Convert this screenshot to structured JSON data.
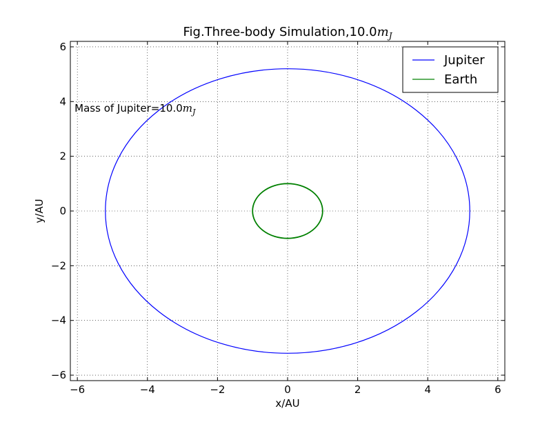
{
  "chart_data": {
    "type": "line",
    "title": "Fig.Three-body Simulation,10.0",
    "title_math": "m",
    "title_math_sub": "J",
    "xlabel": "x/AU",
    "ylabel": "y/AU",
    "xlim": [
      -6.2,
      6.2
    ],
    "ylim": [
      -6.2,
      6.2
    ],
    "xticks": [
      -6,
      -4,
      -2,
      0,
      2,
      4,
      6
    ],
    "yticks": [
      -6,
      -4,
      -2,
      0,
      2,
      4,
      6
    ],
    "xtick_labels": [
      "−6",
      "−4",
      "−2",
      "0",
      "2",
      "4",
      "6"
    ],
    "ytick_labels": [
      "−6",
      "−4",
      "−2",
      "0",
      "2",
      "4",
      "6"
    ],
    "grid": true,
    "legend_position": "top-right",
    "annotation": {
      "text": "Mass of Jupiter=10.0",
      "math": "m",
      "math_sub": "J",
      "x": -6.0,
      "y": 3.75
    },
    "series": [
      {
        "name": "Jupiter",
        "color": "#0000ff",
        "shape": "ellipse",
        "center": [
          0,
          0
        ],
        "semi_axis_x": 5.2,
        "semi_axis_y": 5.2
      },
      {
        "name": "Earth",
        "color": "#008000",
        "shape": "ellipse",
        "center": [
          0,
          0
        ],
        "semi_axis_x": 1.0,
        "semi_axis_y": 1.0
      }
    ]
  }
}
